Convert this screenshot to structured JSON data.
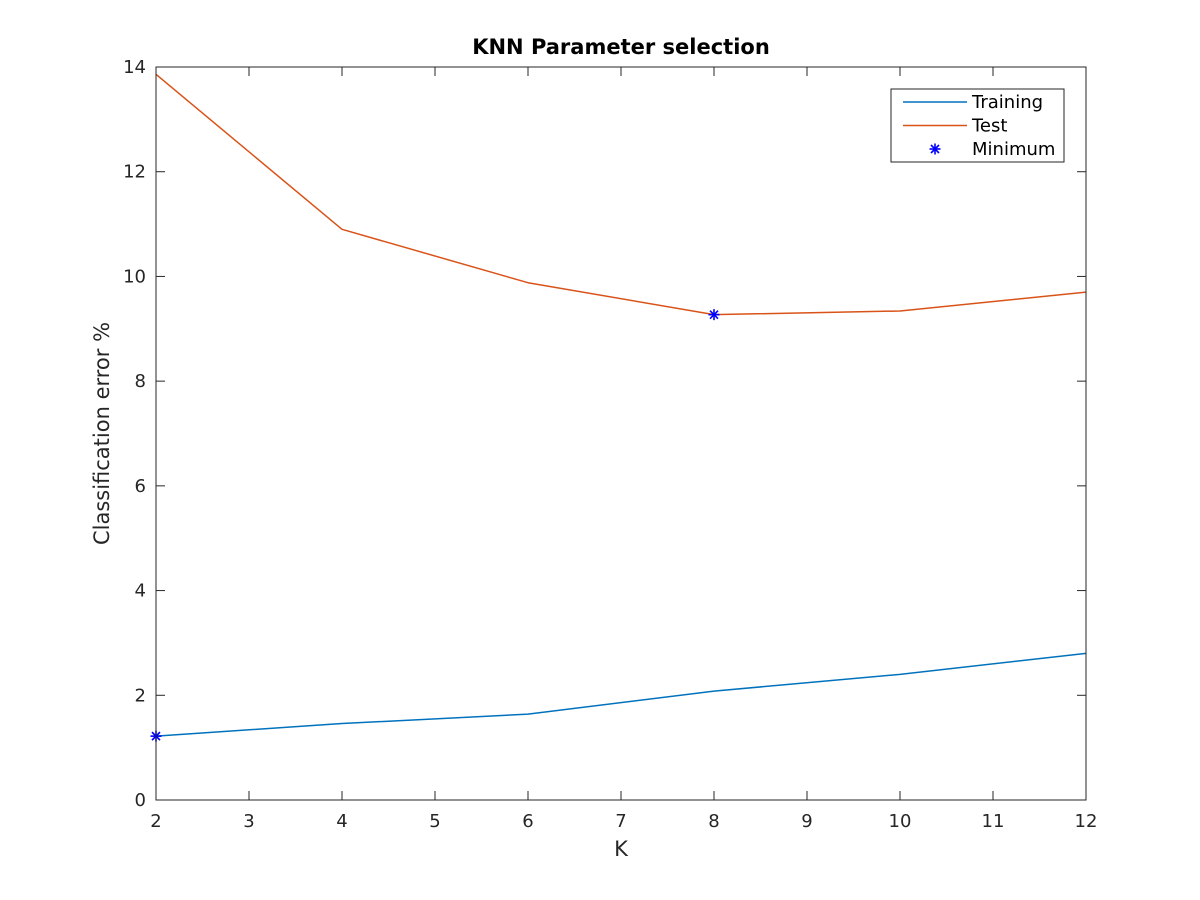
{
  "chart_data": {
    "type": "line",
    "title": "KNN Parameter selection",
    "xlabel": "K",
    "ylabel": "Classification error %",
    "xlim": [
      2,
      12
    ],
    "ylim": [
      0,
      14
    ],
    "xticks": [
      "2",
      "3",
      "4",
      "5",
      "6",
      "7",
      "8",
      "9",
      "10",
      "11",
      "12"
    ],
    "yticks": [
      "0",
      "2",
      "4",
      "6",
      "8",
      "10",
      "12",
      "14"
    ],
    "grid": false,
    "legend_position": "top-right",
    "series": [
      {
        "name": "Training",
        "color": "#0072BD",
        "marker": "none",
        "points": [
          [
            2,
            1.22
          ],
          [
            4,
            1.46
          ],
          [
            6,
            1.64
          ],
          [
            8,
            2.08
          ],
          [
            10,
            2.4
          ],
          [
            12,
            2.8
          ]
        ]
      },
      {
        "name": "Test",
        "color": "#D95319",
        "marker": "none",
        "points": [
          [
            2,
            13.86
          ],
          [
            4,
            10.9
          ],
          [
            6,
            9.88
          ],
          [
            8,
            9.27
          ],
          [
            10,
            9.34
          ],
          [
            12,
            9.7
          ]
        ]
      },
      {
        "name": "Minimum",
        "color": "#0000FF",
        "marker": "asterisk",
        "points": [
          [
            2,
            1.22
          ],
          [
            8,
            9.27
          ]
        ]
      }
    ]
  }
}
